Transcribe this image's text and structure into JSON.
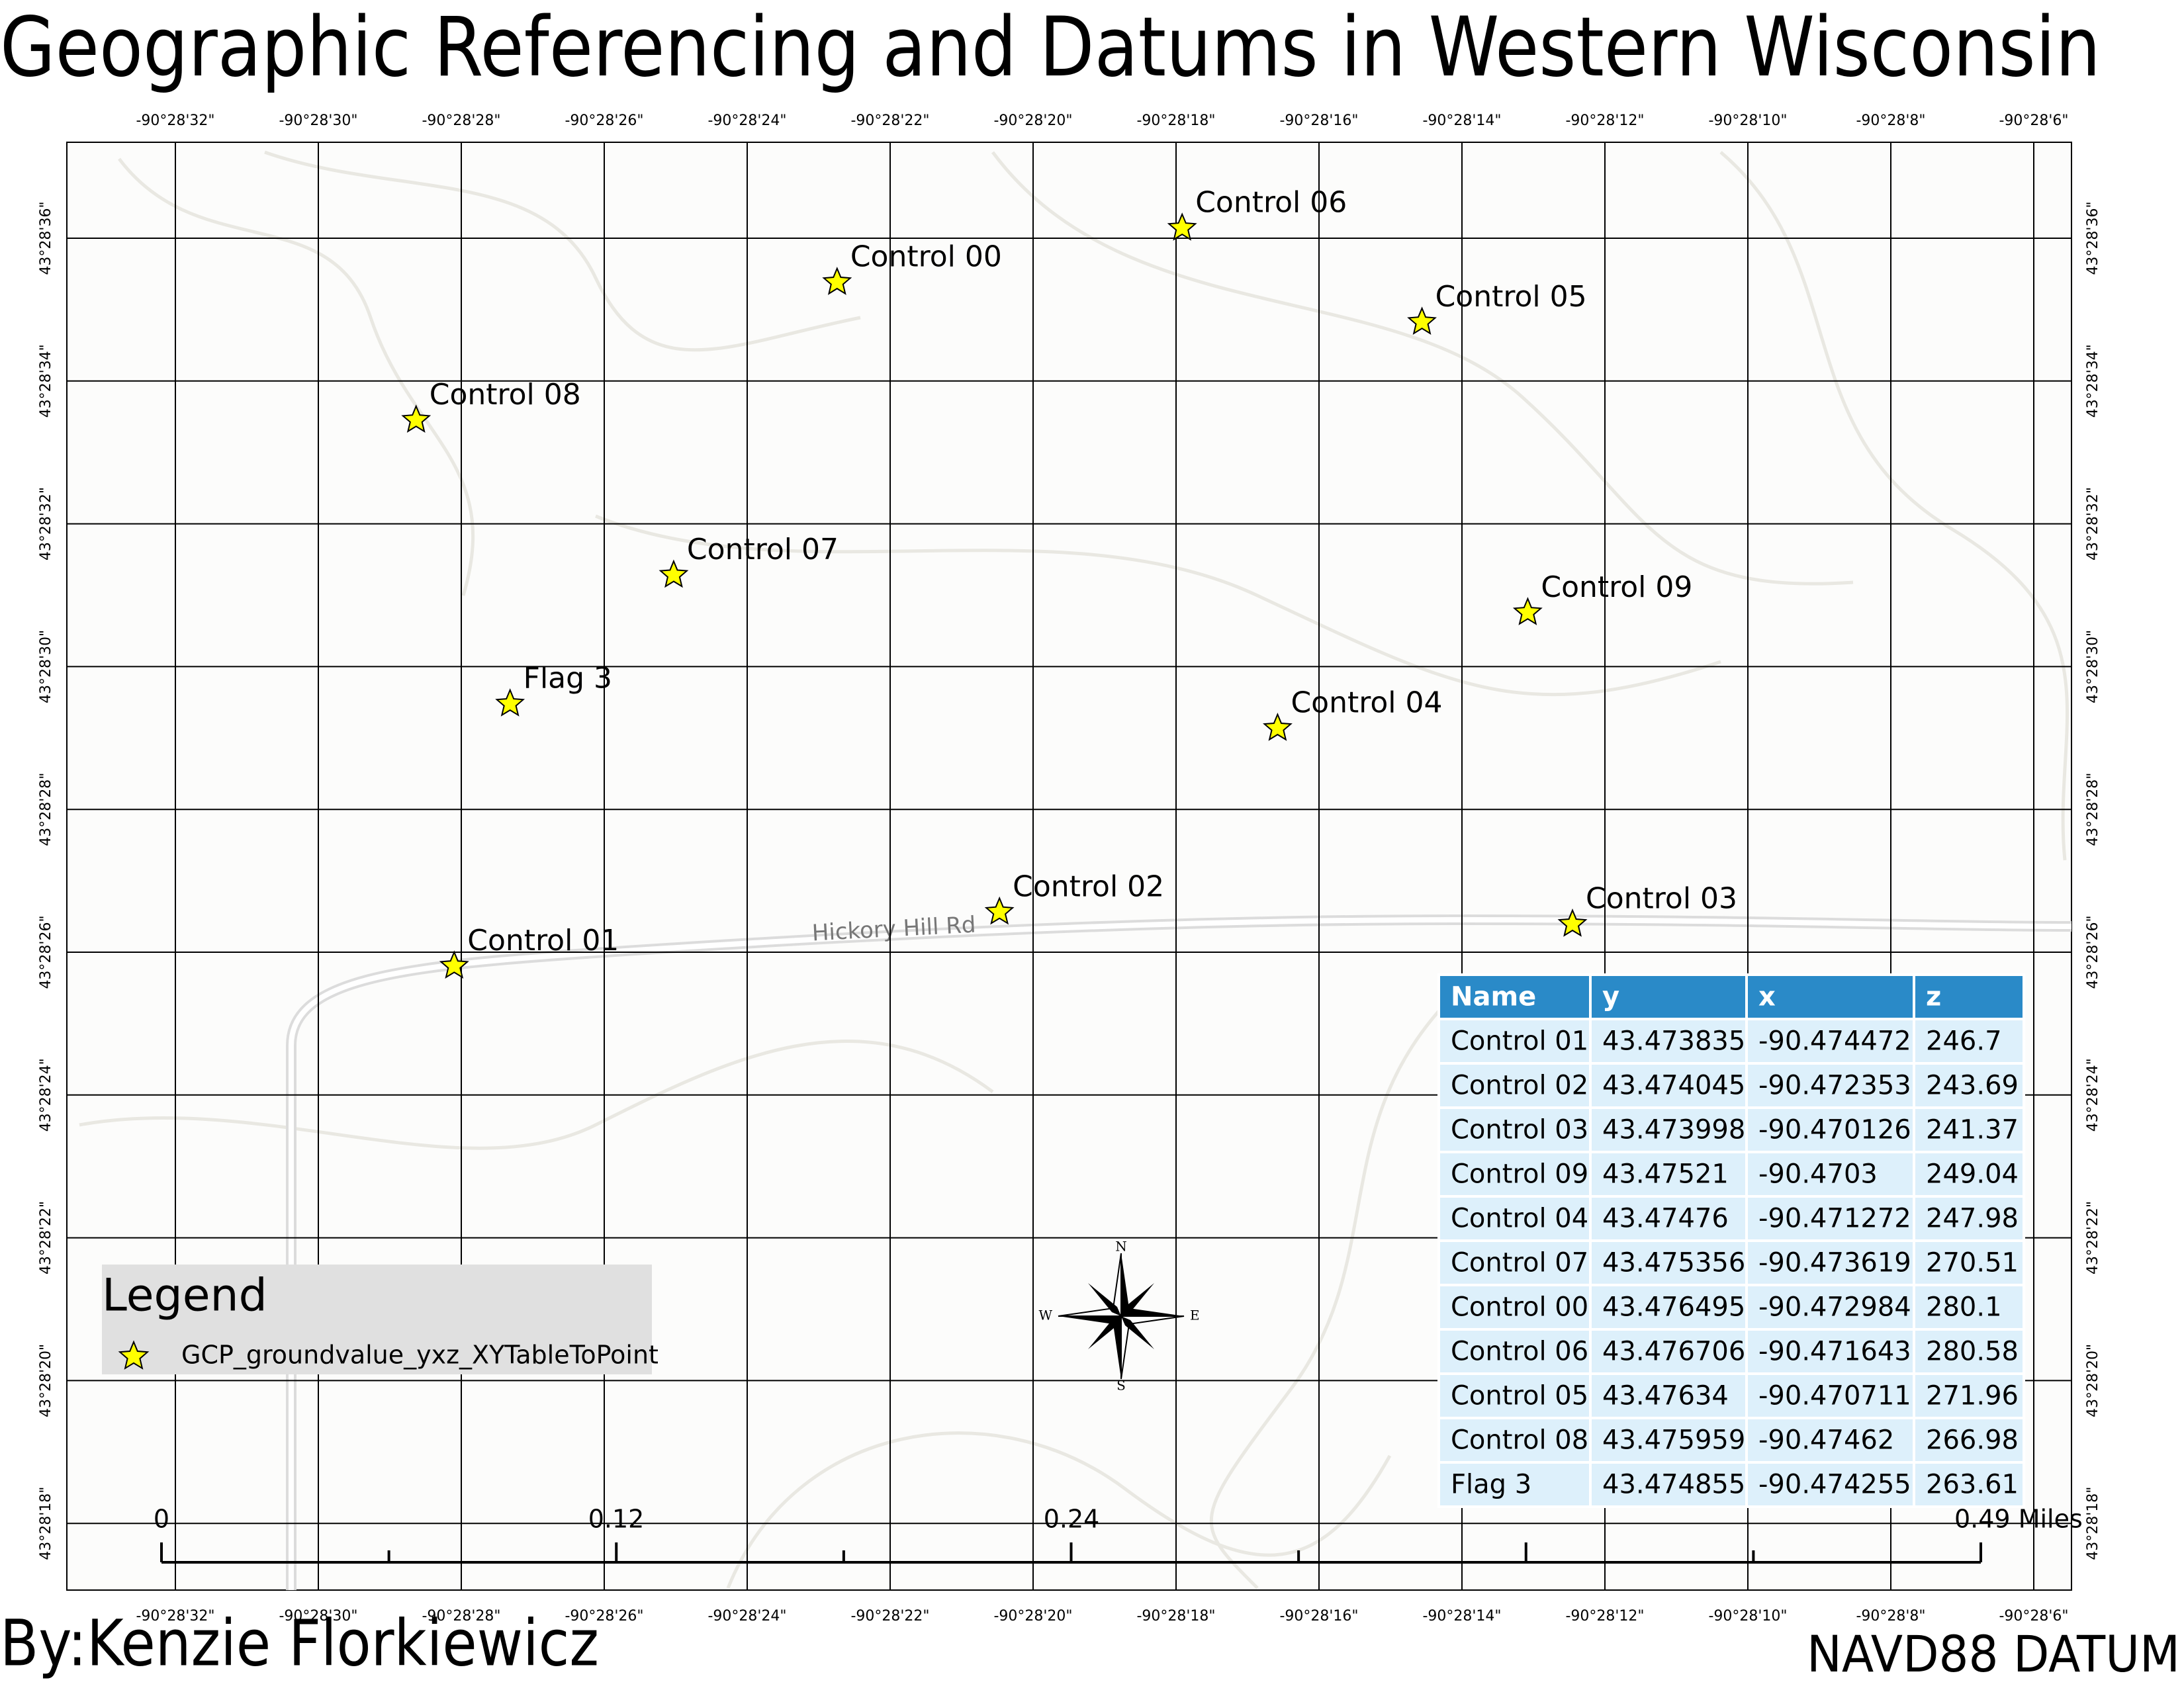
{
  "title": "Geographic Referencing and Datums in Western Wisconsin",
  "author": "By:Kenzie Florkiewicz",
  "datum": "NAVD88 DATUM",
  "grid": {
    "longitude_labels": [
      "-90°28'32\"",
      "-90°28'30\"",
      "-90°28'28\"",
      "-90°28'26\"",
      "-90°28'24\"",
      "-90°28'22\"",
      "-90°28'20\"",
      "-90°28'18\"",
      "-90°28'16\"",
      "-90°28'14\"",
      "-90°28'12\"",
      "-90°28'10\"",
      "-90°28'8\"",
      "-90°28'6\""
    ],
    "latitude_labels": [
      "43°28'36\"",
      "43°28'34\"",
      "43°28'32\"",
      "43°28'30\"",
      "43°28'28\"",
      "43°28'26\"",
      "43°28'24\"",
      "43°28'22\"",
      "43°28'20\"",
      "43°28'18\""
    ]
  },
  "road_label": "Hickory Hill Rd",
  "legend": {
    "title": "Legend",
    "items": [
      "GCP_groundvalue_yxz_XYTableToPoint"
    ]
  },
  "north_arrow": {
    "n": "N",
    "e": "E",
    "s": "S",
    "w": "W"
  },
  "scale_bar": {
    "labels": [
      "0",
      "0.12",
      "0.24",
      "0.49 Miles"
    ]
  },
  "table": {
    "header": [
      "Name",
      "y",
      "x",
      "z"
    ],
    "rows": [
      [
        "Control 01",
        43.473835,
        -90.474472,
        246.7
      ],
      [
        "Control 02",
        43.474045,
        -90.472353,
        243.69
      ],
      [
        "Control 03",
        43.473998,
        -90.470126,
        241.37
      ],
      [
        "Control 09",
        43.47521,
        -90.4703,
        249.04
      ],
      [
        "Control 04",
        43.47476,
        -90.471272,
        247.98
      ],
      [
        "Control 07",
        43.475356,
        -90.473619,
        270.51
      ],
      [
        "Control 00",
        43.476495,
        -90.472984,
        280.1
      ],
      [
        "Control 06",
        43.476706,
        -90.471643,
        280.58
      ],
      [
        "Control 05",
        43.47634,
        -90.470711,
        271.96
      ],
      [
        "Control 08",
        43.475959,
        -90.47462,
        266.98
      ],
      [
        "Flag 3",
        43.474855,
        -90.474255,
        263.61
      ]
    ]
  }
}
